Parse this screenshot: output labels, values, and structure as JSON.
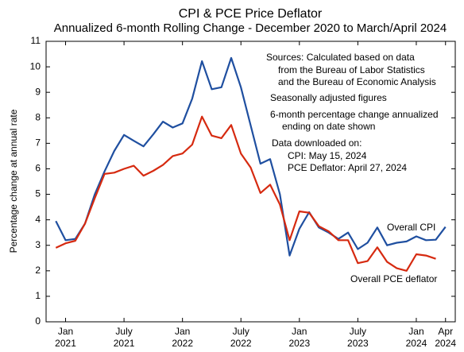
{
  "chart_data": {
    "type": "line",
    "title": "CPI & PCE Price Deflator",
    "subtitle": "Annualized 6-month Rolling Change - December 2020 to March/April 2024",
    "y_label": "Percentage change at annual rate",
    "annotations": [
      "Sources:  Calculated based on data",
      "from the Bureau of Labor Statistics",
      "and the Bureau of Economic Analysis",
      "Seasonally adjusted figures",
      "6-month percentage change annualized",
      "ending on date shown",
      "Data downloaded on:",
      "CPI:  May 15, 2024",
      "PCE Deflator:  April 27, 2024"
    ],
    "x": [
      "2020-12",
      "2021-01",
      "2021-02",
      "2021-03",
      "2021-04",
      "2021-05",
      "2021-06",
      "2021-07",
      "2021-08",
      "2021-09",
      "2021-10",
      "2021-11",
      "2021-12",
      "2022-01",
      "2022-02",
      "2022-03",
      "2022-04",
      "2022-05",
      "2022-06",
      "2022-07",
      "2022-08",
      "2022-09",
      "2022-10",
      "2022-11",
      "2022-12",
      "2023-01",
      "2023-02",
      "2023-03",
      "2023-04",
      "2023-05",
      "2023-06",
      "2023-07",
      "2023-08",
      "2023-09",
      "2023-10",
      "2023-11",
      "2023-12",
      "2024-01",
      "2024-02",
      "2024-03",
      "2024-04"
    ],
    "series": [
      {
        "name": "Overall CPI",
        "color": "#1f4fa0",
        "values": [
          3.95,
          3.2,
          3.25,
          3.85,
          5.0,
          5.9,
          6.7,
          7.33,
          7.1,
          6.88,
          7.35,
          7.85,
          7.62,
          7.78,
          8.75,
          10.22,
          9.12,
          9.2,
          10.35,
          9.2,
          7.7,
          6.2,
          6.38,
          5.0,
          2.6,
          3.65,
          4.3,
          3.7,
          3.5,
          3.25,
          3.5,
          2.85,
          3.1,
          3.7,
          3.0,
          3.1,
          3.15,
          3.35,
          3.2,
          3.22,
          3.72
        ]
      },
      {
        "name": "Overall PCE deflator",
        "color": "#d62a10",
        "values": [
          2.9,
          3.08,
          3.18,
          3.85,
          4.85,
          5.8,
          5.85,
          6.0,
          6.12,
          5.73,
          5.92,
          6.15,
          6.5,
          6.6,
          6.95,
          8.05,
          7.3,
          7.2,
          7.72,
          6.6,
          6.05,
          5.05,
          5.38,
          4.6,
          3.2,
          4.33,
          4.28,
          3.75,
          3.55,
          3.2,
          3.2,
          2.3,
          2.38,
          2.92,
          2.35,
          2.1,
          2.0,
          2.65,
          2.6,
          2.47,
          null
        ]
      }
    ],
    "xlim": [
      "2020-11",
      "2024-05"
    ],
    "xticks": [
      {
        "value": "2021-01",
        "label": [
          "Jan",
          "2021"
        ]
      },
      {
        "value": "2021-07",
        "label": [
          "July",
          "2021"
        ]
      },
      {
        "value": "2022-01",
        "label": [
          "Jan",
          "2022"
        ]
      },
      {
        "value": "2022-07",
        "label": [
          "July",
          "2022"
        ]
      },
      {
        "value": "2023-01",
        "label": [
          "Jan",
          "2023"
        ]
      },
      {
        "value": "2023-07",
        "label": [
          "July",
          "2023"
        ]
      },
      {
        "value": "2024-01",
        "label": [
          "Jan",
          "2024"
        ]
      },
      {
        "value": "2024-04",
        "label": [
          "Apr",
          "2024"
        ]
      }
    ],
    "ylim": [
      0,
      11
    ],
    "yticks": [
      0,
      1,
      2,
      3,
      4,
      5,
      6,
      7,
      8,
      9,
      10,
      11
    ]
  }
}
